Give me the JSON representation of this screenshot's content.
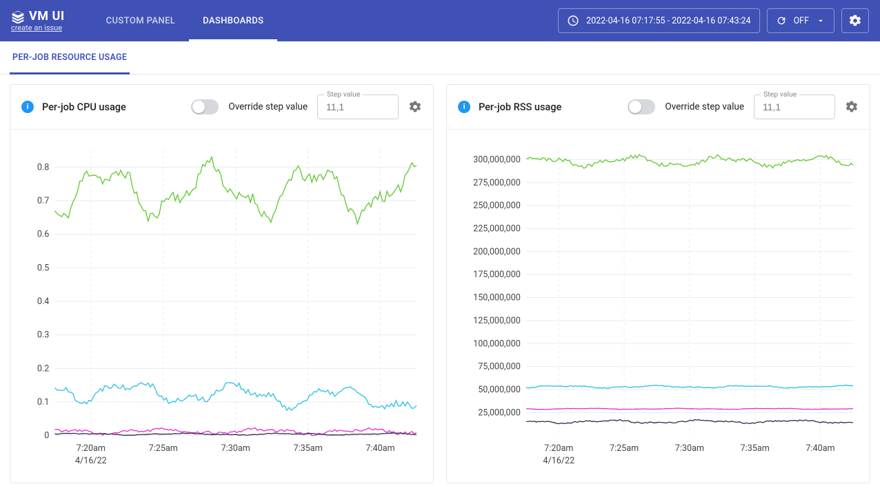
{
  "brand": "VM UI",
  "issue_link": "create an issue",
  "nav": {
    "custom_panel": "CUSTOM PANEL",
    "dashboards": "DASHBOARDS"
  },
  "time_range": "2022-04-16 07:17:55 - 2022-04-16 07:43:24",
  "auto_refresh": "OFF",
  "subtab": "PER-JOB RESOURCE USAGE",
  "panel_common": {
    "override_label": "Override step value",
    "step_label": "Step value",
    "step_placeholder": "11,1"
  },
  "colors": {
    "series_green": "#5fc92e",
    "series_cyan": "#29bfe8",
    "series_magenta": "#e82ccf",
    "series_dark": "#2a2b4a",
    "grid": "#e9ebf1",
    "axis_text": "#444444"
  },
  "chart_cpu": {
    "title": "Per-job CPU usage",
    "y": {
      "min": 0,
      "max": 0.85,
      "ticks": [
        0,
        0.1,
        0.2,
        0.3,
        0.4,
        0.5,
        0.6,
        0.7,
        0.8
      ]
    },
    "x": {
      "ticks": [
        "7:20am",
        "7:25am",
        "7:30am",
        "7:35am",
        "7:40am"
      ],
      "subdate": "4/16/22"
    },
    "series": [
      {
        "color_key": "series_green",
        "base": 0.73,
        "amp": 0.06,
        "noise": 0.018,
        "seed": 11
      },
      {
        "color_key": "series_cyan",
        "base": 0.14,
        "amp": 0.025,
        "noise": 0.01,
        "drift": -0.035,
        "seed": 22
      },
      {
        "color_key": "series_magenta",
        "base": 0.012,
        "amp": 0.006,
        "noise": 0.004,
        "seed": 33
      },
      {
        "color_key": "series_dark",
        "base": 0.004,
        "amp": 0.002,
        "noise": 0.001,
        "seed": 44
      }
    ]
  },
  "chart_rss": {
    "title": "Per-job RSS usage",
    "y": {
      "min": 0,
      "max": 310000000,
      "ticks": [
        25000000,
        50000000,
        75000000,
        100000000,
        125000000,
        150000000,
        175000000,
        200000000,
        225000000,
        250000000,
        275000000,
        300000000
      ],
      "tick_labels": [
        "25,000,000",
        "50,000,000",
        "75,000,000",
        "100,000,000",
        "125,000,000",
        "150,000,000",
        "175,000,000",
        "200,000,000",
        "225,000,000",
        "250,000,000",
        "275,000,000",
        "300,000,000"
      ]
    },
    "x": {
      "ticks": [
        "7:20am",
        "7:25am",
        "7:30am",
        "7:35am",
        "7:40am"
      ],
      "subdate": "4/16/22"
    },
    "series": [
      {
        "color_key": "series_green",
        "base": 298000000,
        "amp": 4000000,
        "noise": 2200000,
        "seed": 51
      },
      {
        "color_key": "series_cyan",
        "base": 53000000,
        "amp": 900000,
        "noise": 500000,
        "seed": 62
      },
      {
        "color_key": "series_magenta",
        "base": 29000000,
        "amp": 400000,
        "noise": 200000,
        "seed": 73
      },
      {
        "color_key": "series_dark",
        "base": 15000000,
        "amp": 1200000,
        "noise": 700000,
        "seed": 84
      }
    ]
  }
}
